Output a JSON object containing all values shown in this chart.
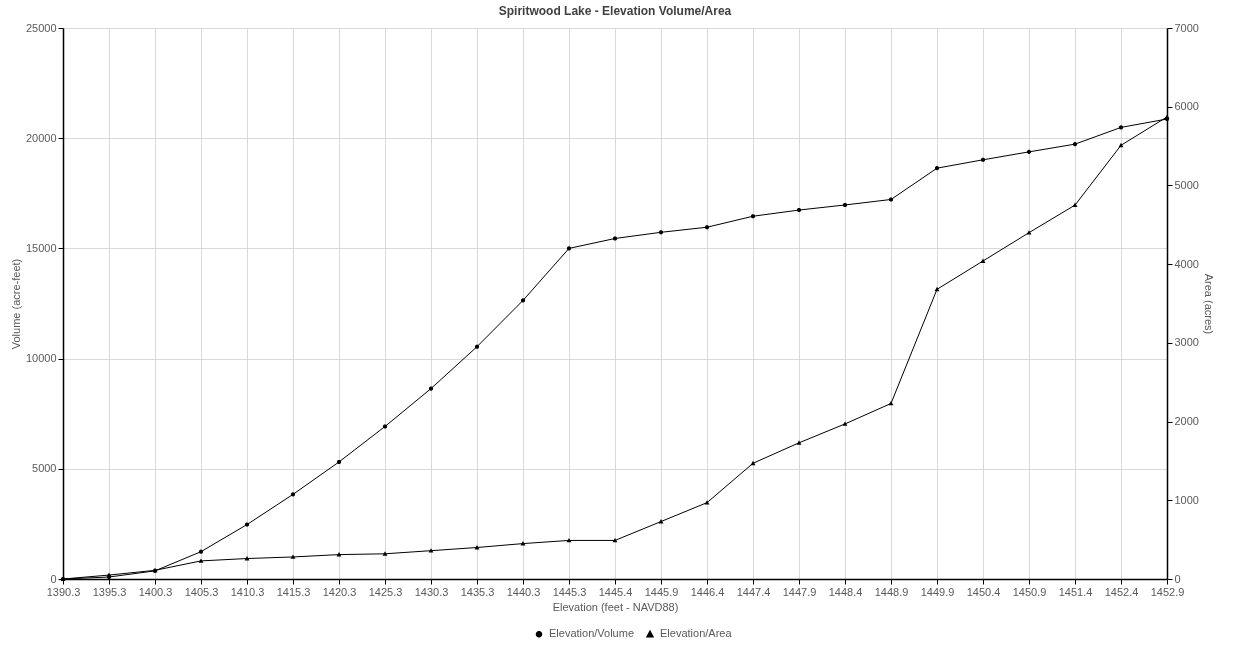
{
  "chart_data": {
    "type": "line",
    "title": "Spiritwood Lake - Elevation Volume/Area",
    "xlabel": "Elevation (feet - NAVD88)",
    "ylabel": "Volume (acre-feet)",
    "y2label": "Area (acres)",
    "categories": [
      "1390.3",
      "1395.3",
      "1400.3",
      "1405.3",
      "1410.3",
      "1415.3",
      "1420.3",
      "1425.3",
      "1430.3",
      "1435.3",
      "1440.3",
      "1445.3",
      "1445.4",
      "1445.9",
      "1446.4",
      "1447.4",
      "1447.9",
      "1448.4",
      "1448.9",
      "1449.9",
      "1450.4",
      "1450.9",
      "1451.4",
      "1452.4",
      "1452.9"
    ],
    "series": [
      {
        "name": "Elevation/Volume",
        "color": "#000000",
        "marker": "circle",
        "values": [
          0,
          90,
          370,
          1240,
          2470,
          3840,
          5310,
          6920,
          8640,
          10540,
          12640,
          15000,
          15450,
          15730,
          15960,
          16460,
          16740,
          16970,
          17220,
          18640,
          19020,
          19380,
          19730,
          20490,
          20870
        ]
      },
      {
        "name": "Elevation/Area",
        "color": "#000000",
        "marker": "triangle",
        "axis": "y2",
        "values": [
          0,
          50,
          110,
          230,
          260,
          280,
          310,
          320,
          360,
          400,
          450,
          490,
          490,
          730,
          970,
          1470,
          1730,
          1970,
          2230,
          3680,
          4040,
          4400,
          4750,
          5510,
          5870
        ]
      }
    ],
    "ylim": [
      0,
      25000
    ],
    "yticks": [
      0,
      5000,
      10000,
      15000,
      20000,
      25000
    ],
    "y2lim": [
      0,
      7000
    ],
    "y2ticks": [
      0,
      1000,
      2000,
      3000,
      4000,
      5000,
      6000,
      7000
    ],
    "grid": true,
    "legend": "bottom"
  }
}
